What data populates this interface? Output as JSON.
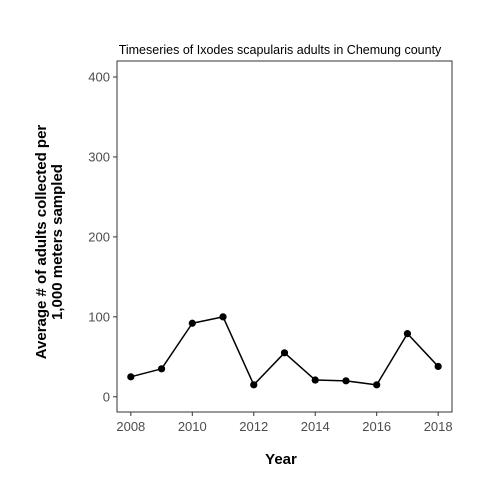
{
  "chart_data": {
    "type": "line",
    "title": "Timeseries of Ixodes scapularis adults in Chemung county",
    "xlabel": "Year",
    "ylabel_lines": [
      "Average # of adults collected per",
      "1,000 meters sampled"
    ],
    "x": [
      2008,
      2009,
      2010,
      2011,
      2012,
      2013,
      2014,
      2015,
      2016,
      2017,
      2018
    ],
    "series": [
      {
        "values": [
          25,
          35,
          92,
          100,
          15,
          55,
          21,
          20,
          15,
          79,
          38
        ]
      }
    ],
    "xlim": [
      2007.55,
      2018.45
    ],
    "ylim": [
      -19,
      420
    ],
    "x_ticks": [
      "2008",
      "2010",
      "2012",
      "2014",
      "2016",
      "2018"
    ],
    "y_ticks": [
      "0",
      "100",
      "200",
      "300",
      "400"
    ],
    "grid": false,
    "colors": {
      "line": "#000000",
      "axis_text": "#4d4d4d",
      "panel_border": "#333333"
    }
  }
}
